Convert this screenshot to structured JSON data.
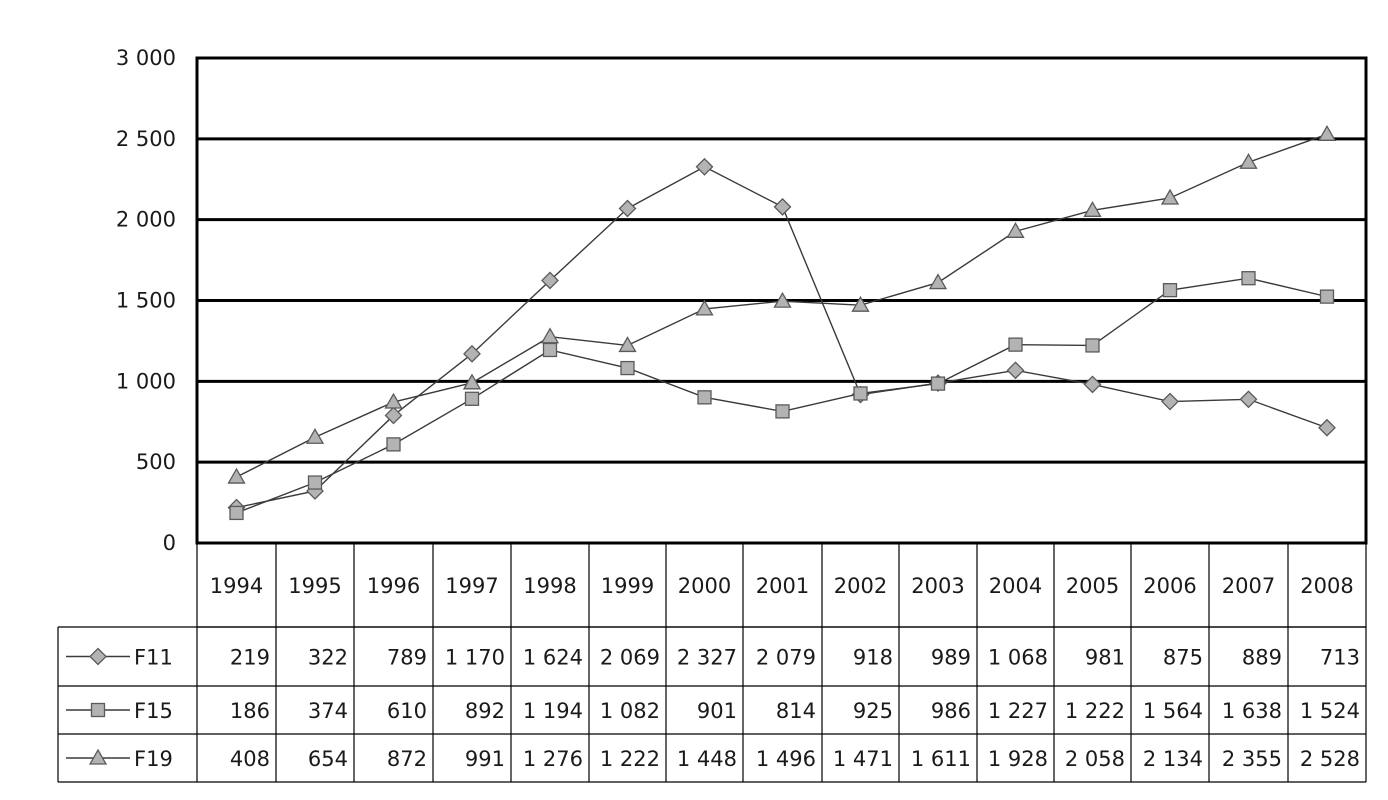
{
  "chart_data": {
    "type": "line",
    "title": "",
    "xlabel": "",
    "ylabel": "",
    "ylim": [
      0,
      3000
    ],
    "yticks": [
      "0",
      "500",
      "1 000",
      "1 500",
      "2 000",
      "2 500",
      "3 000"
    ],
    "grid": true,
    "legend": "data-table-below",
    "categories": [
      "1994",
      "1995",
      "1996",
      "1997",
      "1998",
      "1999",
      "2000",
      "2001",
      "2002",
      "2003",
      "2004",
      "2005",
      "2006",
      "2007",
      "2008"
    ],
    "series": [
      {
        "name": "F11",
        "marker": "diamond",
        "values": [
          219,
          322,
          789,
          1170,
          1624,
          2069,
          2327,
          2079,
          918,
          989,
          1068,
          981,
          875,
          889,
          713
        ],
        "labels": [
          "219",
          "322",
          "789",
          "1 170",
          "1 624",
          "2 069",
          "2 327",
          "2 079",
          "918",
          "989",
          "1 068",
          "981",
          "875",
          "889",
          "713"
        ]
      },
      {
        "name": "F15",
        "marker": "square",
        "values": [
          186,
          374,
          610,
          892,
          1194,
          1082,
          901,
          814,
          925,
          986,
          1227,
          1222,
          1564,
          1638,
          1524
        ],
        "labels": [
          "186",
          "374",
          "610",
          "892",
          "1 194",
          "1 082",
          "901",
          "814",
          "925",
          "986",
          "1 227",
          "1 222",
          "1 564",
          "1 638",
          "1 524"
        ]
      },
      {
        "name": "F19",
        "marker": "triangle",
        "values": [
          408,
          654,
          872,
          991,
          1276,
          1222,
          1448,
          1496,
          1471,
          1611,
          1928,
          2058,
          2134,
          2355,
          2528
        ],
        "labels": [
          "408",
          "654",
          "872",
          "991",
          "1 276",
          "1 222",
          "1 448",
          "1 496",
          "1 471",
          "1 611",
          "1 928",
          "2 058",
          "2 134",
          "2 355",
          "2 528"
        ]
      }
    ],
    "colors": {
      "line": "#3a3a3a",
      "marker_fill": "#b3b3b3",
      "marker_stroke": "#5a5a5a",
      "gridline": "#000000"
    }
  }
}
